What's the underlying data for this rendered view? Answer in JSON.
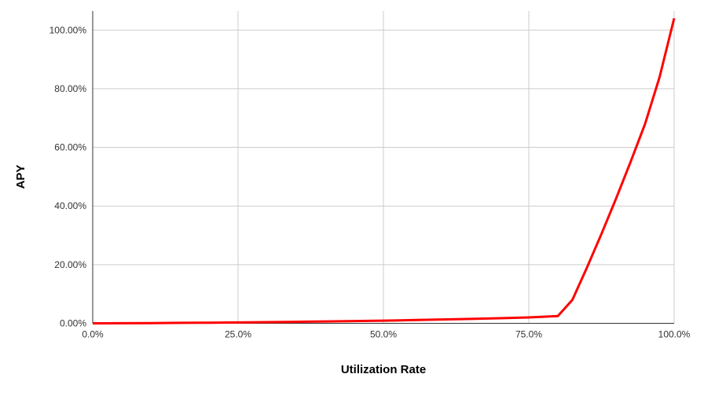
{
  "chart_data": {
    "type": "line",
    "title": "",
    "xlabel": "Utilization Rate",
    "ylabel": "APY",
    "xlim": [
      0,
      100
    ],
    "ylim": [
      0,
      106.5
    ],
    "grid": true,
    "legend_position": "none",
    "axis_color": "#333333",
    "grid_color": "#cccccc",
    "tick_color": "#333333",
    "x_ticks": [
      {
        "value": 0,
        "label": "0.0%"
      },
      {
        "value": 25,
        "label": "25.0%"
      },
      {
        "value": 50,
        "label": "50.0%"
      },
      {
        "value": 75,
        "label": "75.0%"
      },
      {
        "value": 100,
        "label": "100.0%"
      }
    ],
    "y_ticks": [
      {
        "value": 0,
        "label": "0.00%"
      },
      {
        "value": 20,
        "label": "20.00%"
      },
      {
        "value": 40,
        "label": "40.00%"
      },
      {
        "value": 60,
        "label": "60.00%"
      },
      {
        "value": 80,
        "label": "80.00%"
      },
      {
        "value": 100,
        "label": "100.00%"
      }
    ],
    "series": [
      {
        "name": "APY",
        "color": "#ff0000",
        "stroke_width": 3,
        "points": [
          {
            "x": 0,
            "y": 0.0
          },
          {
            "x": 5,
            "y": 0.04
          },
          {
            "x": 10,
            "y": 0.09
          },
          {
            "x": 15,
            "y": 0.15
          },
          {
            "x": 20,
            "y": 0.21
          },
          {
            "x": 25,
            "y": 0.3
          },
          {
            "x": 30,
            "y": 0.4
          },
          {
            "x": 35,
            "y": 0.52
          },
          {
            "x": 40,
            "y": 0.64
          },
          {
            "x": 45,
            "y": 0.77
          },
          {
            "x": 50,
            "y": 0.9
          },
          {
            "x": 55,
            "y": 1.1
          },
          {
            "x": 60,
            "y": 1.3
          },
          {
            "x": 65,
            "y": 1.5
          },
          {
            "x": 70,
            "y": 1.75
          },
          {
            "x": 75,
            "y": 2.0
          },
          {
            "x": 80,
            "y": 2.5
          },
          {
            "x": 82.5,
            "y": 8.0
          },
          {
            "x": 85,
            "y": 19.0
          },
          {
            "x": 87.5,
            "y": 30.5
          },
          {
            "x": 90,
            "y": 42.5
          },
          {
            "x": 92.5,
            "y": 55.0
          },
          {
            "x": 95,
            "y": 68.0
          },
          {
            "x": 97.5,
            "y": 84.0
          },
          {
            "x": 100,
            "y": 104.0
          }
        ]
      }
    ]
  }
}
